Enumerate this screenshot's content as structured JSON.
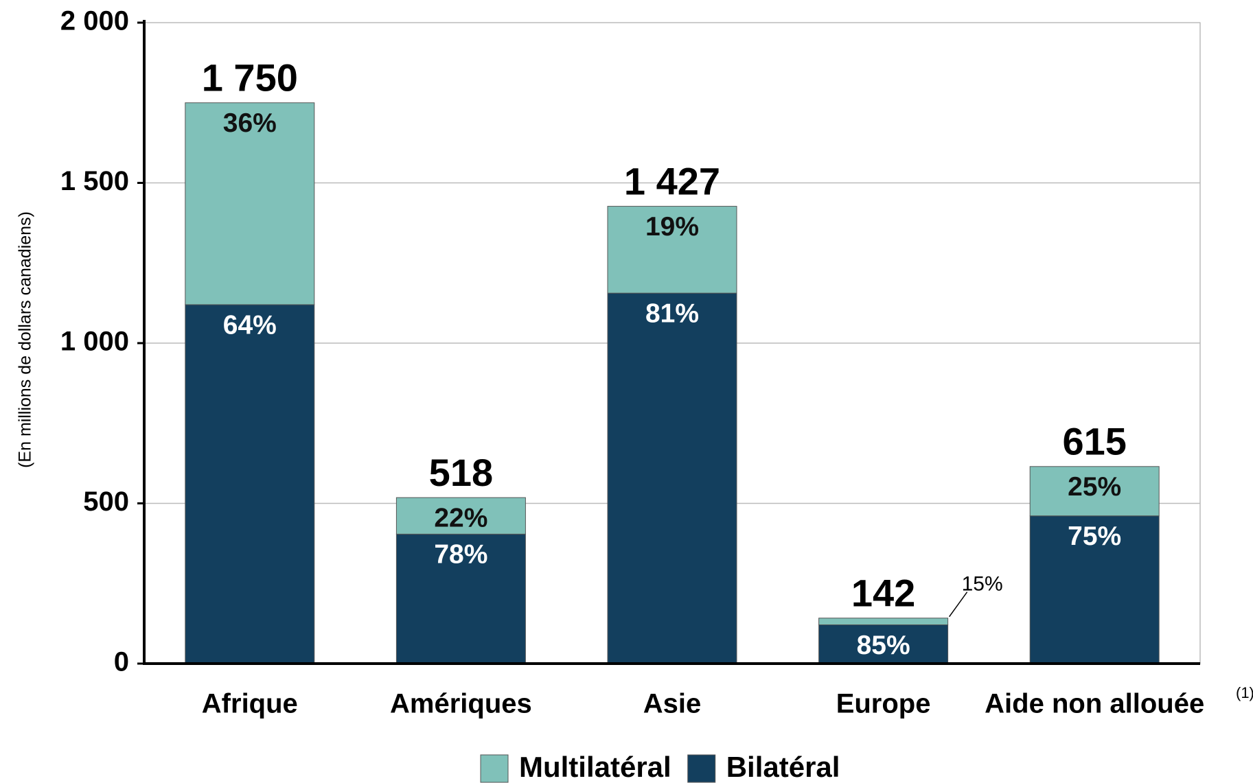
{
  "chart_data": {
    "type": "stacked_bar",
    "y_axis_label": "(En millions de dollars canadiens)",
    "categories": [
      "Afrique",
      "Amériques",
      "Asie",
      "Europe",
      "Aide non allouée"
    ],
    "category_note": "(1)",
    "series": [
      {
        "name": "Bilatéral",
        "color": "#133f5e",
        "values": [
          1120,
          404,
          1156,
          121,
          461
        ],
        "share_labels": [
          "64%",
          "78%",
          "81%",
          "85%",
          "75%"
        ]
      },
      {
        "name": "Multilatéral",
        "color": "#80c1b9",
        "values": [
          630,
          114,
          271,
          21,
          154
        ],
        "share_labels": [
          "36%",
          "22%",
          "19%",
          "15%",
          "25%"
        ]
      }
    ],
    "totals": [
      1750,
      518,
      1427,
      142,
      615
    ],
    "total_labels": [
      "1 750",
      "518",
      "1 427",
      "142",
      "615"
    ],
    "ylim": [
      0,
      2000
    ],
    "yticks": [
      0,
      500,
      {
        "value": 1000,
        "label": "1 000"
      },
      {
        "value": 1500,
        "label": "1 500"
      },
      {
        "value": 2000,
        "label": "2 000"
      }
    ],
    "grid": true,
    "legend_order": [
      1,
      0
    ]
  }
}
